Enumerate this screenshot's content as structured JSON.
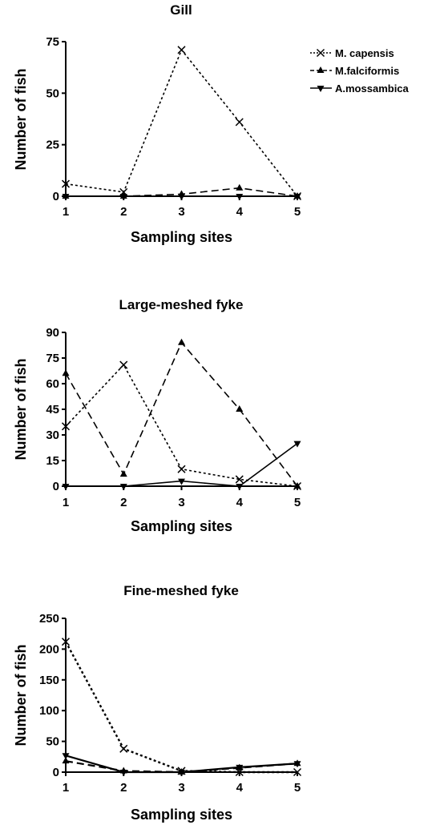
{
  "legend": {
    "position": "top-right",
    "entries": [
      "M. capensis",
      "M.falciformis",
      "A.mossambica"
    ]
  },
  "chart_data": [
    {
      "type": "line",
      "title": "Gill",
      "xlabel": "Sampling sites",
      "ylabel": "Number of fish",
      "x": [
        1,
        2,
        3,
        4,
        5
      ],
      "yticks": [
        0,
        25,
        50,
        75
      ],
      "ylim": [
        0,
        75
      ],
      "series": [
        {
          "name": "M. capensis",
          "values": [
            6,
            2,
            71,
            36,
            0
          ]
        },
        {
          "name": "M.falciformis",
          "values": [
            0,
            0,
            1,
            4,
            0
          ]
        },
        {
          "name": "A.mossambica",
          "values": [
            0,
            0,
            0,
            0,
            0
          ]
        }
      ]
    },
    {
      "type": "line",
      "title": "Large-meshed fyke",
      "xlabel": "Sampling sites",
      "ylabel": "Number of fish",
      "x": [
        1,
        2,
        3,
        4,
        5
      ],
      "yticks": [
        0,
        15,
        30,
        45,
        60,
        75,
        90
      ],
      "ylim": [
        0,
        90
      ],
      "series": [
        {
          "name": "M. capensis",
          "values": [
            35,
            71,
            10,
            4,
            0
          ]
        },
        {
          "name": "M.falciformis",
          "values": [
            66,
            7,
            84,
            45,
            0
          ]
        },
        {
          "name": "A.mossambica",
          "values": [
            0,
            0,
            3,
            0,
            25
          ]
        }
      ]
    },
    {
      "type": "line",
      "title": "Fine-meshed fyke",
      "xlabel": "Sampling sites",
      "ylabel": "Number of fish",
      "x": [
        1,
        2,
        3,
        4,
        5
      ],
      "yticks": [
        0,
        50,
        100,
        150,
        200,
        250
      ],
      "ylim": [
        0,
        250
      ],
      "series": [
        {
          "name": "M. capensis",
          "values": [
            212,
            38,
            2,
            0,
            0
          ]
        },
        {
          "name": "M.falciformis",
          "values": [
            18,
            2,
            0,
            7,
            14
          ]
        },
        {
          "name": "A.mossambica",
          "values": [
            27,
            0,
            0,
            8,
            14
          ]
        }
      ]
    }
  ]
}
